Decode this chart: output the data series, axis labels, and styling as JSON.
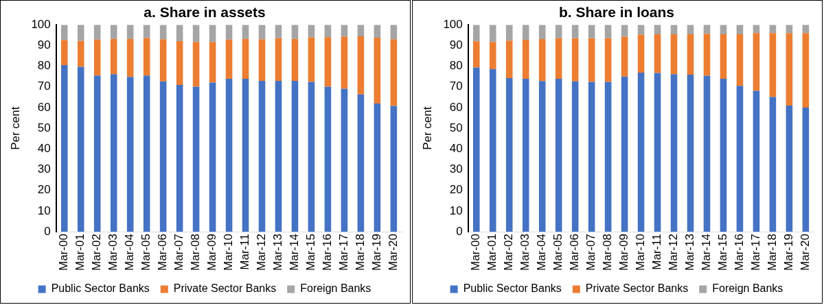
{
  "chart_data": [
    {
      "type": "bar",
      "title": "a. Share in assets",
      "ylabel": "Per cent",
      "stacked": true,
      "legend": "bottom",
      "grid": false,
      "categories": [
        "Mar-00",
        "Mar-01",
        "Mar-02",
        "Mar-03",
        "Mar-04",
        "Mar-05",
        "Mar-06",
        "Mar-07",
        "Mar-08",
        "Mar-09",
        "Mar-10",
        "Mar-11",
        "Mar-12",
        "Mar-13",
        "Mar-14",
        "Mar-15",
        "Mar-16",
        "Mar-17",
        "Mar-18",
        "Mar-19",
        "Mar-20"
      ],
      "ylim": [
        0,
        100
      ],
      "yticks": [
        0,
        10,
        20,
        30,
        40,
        50,
        60,
        70,
        80,
        90,
        100
      ],
      "series": [
        {
          "name": "Public Sector Banks",
          "color": "#4472c4",
          "values": [
            80.5,
            79.7,
            75.5,
            76.1,
            74.8,
            75.5,
            72.7,
            70.9,
            70.1,
            72.1,
            73.9,
            73.9,
            72.9,
            72.9,
            72.9,
            72.4,
            70.1,
            69.1,
            66.4,
            62.0,
            60.8
          ]
        },
        {
          "name": "Private Sector Banks",
          "color": "#ed7d31",
          "values": [
            12.1,
            12.5,
            17.4,
            17.1,
            18.4,
            18.1,
            20.3,
            21.2,
            21.6,
            19.6,
            19.0,
            19.3,
            20.1,
            20.6,
            20.3,
            21.5,
            23.9,
            25.2,
            28.0,
            31.8,
            32.2
          ]
        },
        {
          "name": "Foreign Banks",
          "color": "#a5a5a5",
          "values": [
            7.4,
            7.8,
            7.1,
            6.8,
            6.8,
            6.4,
            7.0,
            7.9,
            8.3,
            8.3,
            7.1,
            6.8,
            7.0,
            6.5,
            6.8,
            6.1,
            6.0,
            5.7,
            5.6,
            6.2,
            7.0
          ]
        }
      ]
    },
    {
      "type": "bar",
      "title": "b. Share in loans",
      "ylabel": "Per cent",
      "stacked": true,
      "legend": "bottom",
      "grid": false,
      "categories": [
        "Mar-00",
        "Mar-01",
        "Mar-02",
        "Mar-03",
        "Mar-04",
        "Mar-05",
        "Mar-06",
        "Mar-07",
        "Mar-08",
        "Mar-09",
        "Mar-10",
        "Mar-11",
        "Mar-12",
        "Mar-13",
        "Mar-14",
        "Mar-15",
        "Mar-16",
        "Mar-17",
        "Mar-18",
        "Mar-19",
        "Mar-20"
      ],
      "ylim": [
        0,
        100
      ],
      "yticks": [
        0,
        10,
        20,
        30,
        40,
        50,
        60,
        70,
        80,
        90,
        100
      ],
      "series": [
        {
          "name": "Public Sector Banks",
          "color": "#4472c4",
          "values": [
            79.4,
            78.6,
            74.2,
            73.9,
            72.8,
            73.9,
            72.7,
            72.4,
            72.4,
            75.0,
            76.9,
            76.7,
            76.1,
            75.9,
            75.4,
            73.9,
            70.5,
            68.1,
            65.1,
            61.0,
            60.0
          ]
        },
        {
          "name": "Private Sector Banks",
          "color": "#ed7d31",
          "values": [
            12.6,
            13.1,
            18.2,
            18.9,
            20.3,
            19.6,
            20.8,
            21.1,
            21.1,
            19.3,
            18.4,
            18.7,
            19.3,
            19.5,
            20.3,
            21.5,
            24.9,
            27.9,
            30.9,
            35.0,
            36.0
          ]
        },
        {
          "name": "Foreign Banks",
          "color": "#a5a5a5",
          "values": [
            8.0,
            8.3,
            7.6,
            7.2,
            6.9,
            6.5,
            6.5,
            6.5,
            6.5,
            5.7,
            4.7,
            4.6,
            4.6,
            4.6,
            4.3,
            4.6,
            4.6,
            4.0,
            4.0,
            4.0,
            4.0
          ]
        }
      ]
    }
  ]
}
